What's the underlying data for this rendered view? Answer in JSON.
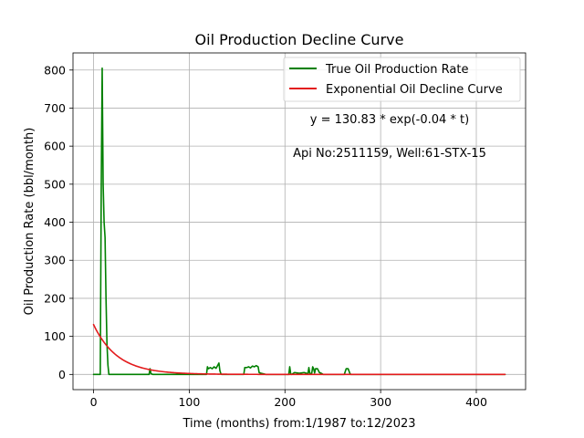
{
  "chart_data": {
    "type": "line",
    "title": "Oil Production Decline Curve",
    "xlabel": "Time (months) from:1/1987 to:12/2023",
    "ylabel": "Oil Production Rate (bbl/month)",
    "xlim": [
      -21.5,
      451.5
    ],
    "ylim": [
      -40,
      845
    ],
    "xticks": [
      0,
      100,
      200,
      300,
      400
    ],
    "yticks": [
      0,
      100,
      200,
      300,
      400,
      500,
      600,
      700,
      800
    ],
    "grid": true,
    "legend_position": "upper right",
    "annotations": [
      "y = 130.83 * exp(-0.04 * t)",
      "Api No:2511159, Well:61-STX-15"
    ],
    "series": [
      {
        "name": "True Oil Production Rate",
        "color": "#008000",
        "x": [
          0,
          5,
          7,
          8,
          9,
          10,
          11,
          12,
          13,
          14,
          15,
          16,
          17,
          18,
          30,
          50,
          58,
          59,
          60,
          62,
          80,
          100,
          118,
          119,
          120,
          122,
          124,
          126,
          128,
          130,
          131,
          132,
          133,
          134,
          150,
          157,
          158,
          160,
          162,
          164,
          166,
          168,
          170,
          172,
          173,
          175,
          177,
          180,
          190,
          200,
          204,
          205,
          206,
          207,
          210,
          215,
          220,
          224,
          225,
          226,
          228,
          229,
          230,
          231,
          232,
          234,
          236,
          238,
          240,
          250,
          262,
          264,
          266,
          268,
          269,
          280,
          300,
          350,
          380,
          430
        ],
        "y": [
          0,
          0,
          0,
          480,
          805,
          500,
          400,
          360,
          200,
          80,
          25,
          0,
          0,
          0,
          0,
          0,
          0,
          15,
          2,
          0,
          0,
          0,
          0,
          20,
          15,
          18,
          15,
          20,
          16,
          25,
          30,
          10,
          2,
          0,
          0,
          0,
          18,
          18,
          20,
          17,
          22,
          20,
          23,
          20,
          5,
          3,
          2,
          0,
          0,
          0,
          0,
          20,
          2,
          0,
          5,
          3,
          5,
          2,
          18,
          2,
          3,
          20,
          15,
          4,
          15,
          15,
          5,
          3,
          0,
          0,
          0,
          15,
          15,
          2,
          0,
          0,
          0,
          0,
          0,
          0
        ]
      },
      {
        "name": "Exponential Oil Decline Curve",
        "color": "#e31a1c",
        "function": "exponential",
        "a": 130.83,
        "b": -0.04,
        "x_range": [
          0,
          430
        ]
      }
    ]
  }
}
